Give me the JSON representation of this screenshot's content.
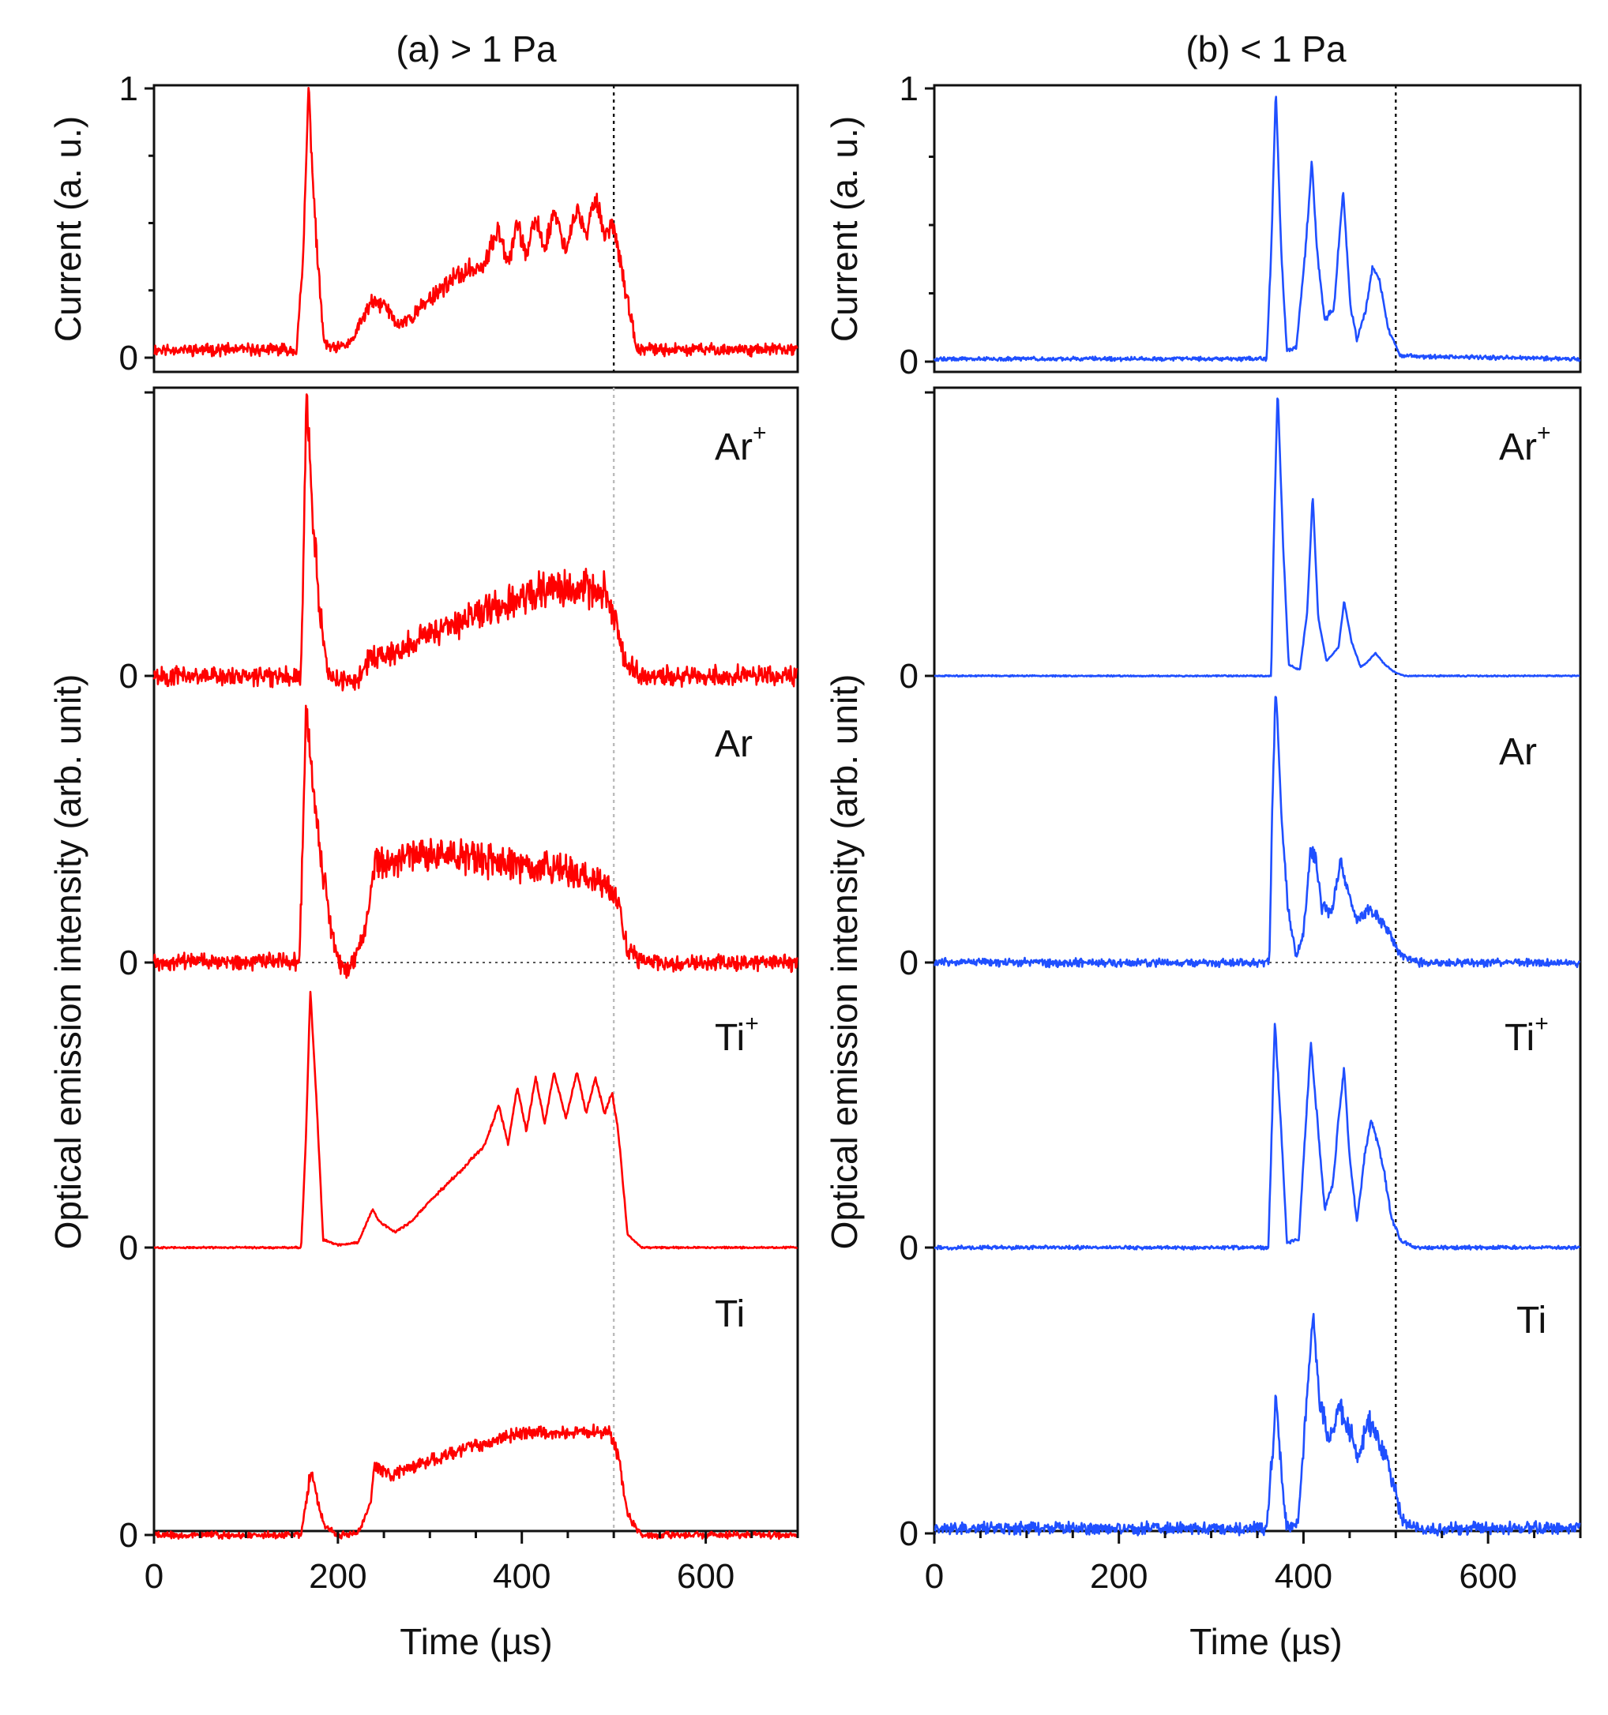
{
  "chart_data": [
    {
      "id": "a",
      "type": "line",
      "title": "(a) > 1 Pa",
      "xlabel": "Time (µs)",
      "xlim": [
        0,
        700
      ],
      "xticks": [
        "0",
        "200",
        "400",
        "600"
      ],
      "xtick_values": [
        0,
        200,
        400,
        600
      ],
      "pulse_end_us": 500,
      "color": "#ff0000",
      "current": {
        "ylabel": "Current (a. u.)",
        "ylim": [
          0,
          1
        ],
        "yticks": [
          "0",
          "1"
        ],
        "noise": 0.035,
        "points": [
          [
            0,
            0.03
          ],
          [
            155,
            0.03
          ],
          [
            162,
            0.35
          ],
          [
            168,
            1.0
          ],
          [
            176,
            0.45
          ],
          [
            185,
            0.05
          ],
          [
            198,
            0.03
          ],
          [
            215,
            0.06
          ],
          [
            235,
            0.2
          ],
          [
            250,
            0.2
          ],
          [
            265,
            0.12
          ],
          [
            280,
            0.15
          ],
          [
            300,
            0.22
          ],
          [
            320,
            0.28
          ],
          [
            340,
            0.32
          ],
          [
            360,
            0.35
          ],
          [
            375,
            0.48
          ],
          [
            385,
            0.36
          ],
          [
            395,
            0.5
          ],
          [
            405,
            0.38
          ],
          [
            415,
            0.52
          ],
          [
            425,
            0.4
          ],
          [
            435,
            0.55
          ],
          [
            448,
            0.4
          ],
          [
            460,
            0.55
          ],
          [
            470,
            0.45
          ],
          [
            480,
            0.6
          ],
          [
            490,
            0.46
          ],
          [
            500,
            0.5
          ],
          [
            510,
            0.3
          ],
          [
            525,
            0.03
          ],
          [
            700,
            0.03
          ]
        ]
      },
      "emission": {
        "ylabel": "Optical emission intensity (arb. unit)",
        "yticks": [
          "0",
          "0",
          "0",
          "0"
        ],
        "series": [
          {
            "name": "Ar",
            "sup": "+",
            "noise": 0.06,
            "points": [
              [
                0,
                0
              ],
              [
                160,
                0
              ],
              [
                163,
                0.5
              ],
              [
                166,
                1.0
              ],
              [
                172,
                0.6
              ],
              [
                180,
                0.25
              ],
              [
                190,
                0.0
              ],
              [
                200,
                -0.02
              ],
              [
                220,
                -0.02
              ],
              [
                235,
                0.06
              ],
              [
                260,
                0.08
              ],
              [
                300,
                0.15
              ],
              [
                340,
                0.2
              ],
              [
                380,
                0.26
              ],
              [
                420,
                0.3
              ],
              [
                460,
                0.32
              ],
              [
                490,
                0.3
              ],
              [
                500,
                0.22
              ],
              [
                512,
                0.05
              ],
              [
                530,
                0
              ],
              [
                700,
                0
              ]
            ]
          },
          {
            "name": "Ar",
            "sup": "",
            "noise": 0.055,
            "zero_line": true,
            "points": [
              [
                0,
                0
              ],
              [
                158,
                0
              ],
              [
                162,
                0.45
              ],
              [
                165,
                0.95
              ],
              [
                172,
                0.7
              ],
              [
                182,
                0.38
              ],
              [
                195,
                0.08
              ],
              [
                205,
                -0.03
              ],
              [
                218,
                0
              ],
              [
                232,
                0.15
              ],
              [
                240,
                0.38
              ],
              [
                260,
                0.38
              ],
              [
                300,
                0.4
              ],
              [
                350,
                0.39
              ],
              [
                400,
                0.36
              ],
              [
                450,
                0.34
              ],
              [
                495,
                0.3
              ],
              [
                505,
                0.24
              ],
              [
                515,
                0.05
              ],
              [
                530,
                0
              ],
              [
                700,
                0
              ]
            ]
          },
          {
            "name": "Ti",
            "sup": "+",
            "noise": 0.006,
            "points": [
              [
                0,
                0
              ],
              [
                160,
                0
              ],
              [
                165,
                0.4
              ],
              [
                170,
                1.0
              ],
              [
                177,
                0.55
              ],
              [
                184,
                0.03
              ],
              [
                200,
                0.01
              ],
              [
                222,
                0.02
              ],
              [
                238,
                0.15
              ],
              [
                245,
                0.1
              ],
              [
                262,
                0.06
              ],
              [
                280,
                0.1
              ],
              [
                300,
                0.18
              ],
              [
                320,
                0.25
              ],
              [
                340,
                0.32
              ],
              [
                360,
                0.4
              ],
              [
                375,
                0.55
              ],
              [
                385,
                0.4
              ],
              [
                395,
                0.62
              ],
              [
                405,
                0.45
              ],
              [
                415,
                0.66
              ],
              [
                425,
                0.48
              ],
              [
                435,
                0.68
              ],
              [
                448,
                0.5
              ],
              [
                460,
                0.68
              ],
              [
                470,
                0.52
              ],
              [
                480,
                0.66
              ],
              [
                490,
                0.52
              ],
              [
                498,
                0.6
              ],
              [
                505,
                0.45
              ],
              [
                515,
                0.05
              ],
              [
                530,
                0
              ],
              [
                700,
                0
              ]
            ]
          },
          {
            "name": "Ti",
            "sup": "",
            "noise": 0.03,
            "points": [
              [
                0,
                0
              ],
              [
                160,
                0
              ],
              [
                165,
                0.15
              ],
              [
                170,
                0.32
              ],
              [
                176,
                0.22
              ],
              [
                185,
                0.05
              ],
              [
                200,
                0.0
              ],
              [
                222,
                0.01
              ],
              [
                235,
                0.15
              ],
              [
                240,
                0.35
              ],
              [
                260,
                0.3
              ],
              [
                300,
                0.38
              ],
              [
                350,
                0.45
              ],
              [
                400,
                0.52
              ],
              [
                450,
                0.52
              ],
              [
                495,
                0.52
              ],
              [
                505,
                0.4
              ],
              [
                515,
                0.1
              ],
              [
                530,
                0
              ],
              [
                700,
                0
              ]
            ]
          }
        ]
      }
    },
    {
      "id": "b",
      "type": "line",
      "title": "(b) < 1 Pa",
      "xlabel": "Time (µs)",
      "xlim": [
        0,
        700
      ],
      "xticks": [
        "0",
        "200",
        "400",
        "600"
      ],
      "xtick_values": [
        0,
        200,
        400,
        600
      ],
      "pulse_end_us": 500,
      "color": "#1f4fff",
      "current": {
        "ylabel": "Current (a. u.)",
        "ylim": [
          0,
          1
        ],
        "yticks": [
          "0",
          "1"
        ],
        "noise": 0.012,
        "points": [
          [
            0,
            0.01
          ],
          [
            360,
            0.01
          ],
          [
            365,
            0.4
          ],
          [
            370,
            1.0
          ],
          [
            376,
            0.4
          ],
          [
            382,
            0.04
          ],
          [
            392,
            0.05
          ],
          [
            402,
            0.4
          ],
          [
            409,
            0.73
          ],
          [
            415,
            0.4
          ],
          [
            423,
            0.15
          ],
          [
            433,
            0.2
          ],
          [
            443,
            0.63
          ],
          [
            451,
            0.2
          ],
          [
            458,
            0.08
          ],
          [
            468,
            0.2
          ],
          [
            475,
            0.35
          ],
          [
            482,
            0.3
          ],
          [
            492,
            0.12
          ],
          [
            505,
            0.02
          ],
          [
            700,
            0.01
          ]
        ]
      },
      "emission": {
        "ylabel": "Optical emission intensity (arb. unit)",
        "yticks": [
          "0",
          "0",
          "0",
          "0"
        ],
        "series": [
          {
            "name": "Ar",
            "sup": "+",
            "noise": 0.004,
            "points": [
              [
                0,
                0
              ],
              [
                365,
                0
              ],
              [
                368,
                0.5
              ],
              [
                372,
                1.0
              ],
              [
                378,
                0.45
              ],
              [
                384,
                0.04
              ],
              [
                396,
                0.02
              ],
              [
                404,
                0.22
              ],
              [
                410,
                0.63
              ],
              [
                416,
                0.2
              ],
              [
                425,
                0.05
              ],
              [
                438,
                0.1
              ],
              [
                444,
                0.26
              ],
              [
                452,
                0.12
              ],
              [
                462,
                0.03
              ],
              [
                470,
                0.05
              ],
              [
                478,
                0.08
              ],
              [
                488,
                0.04
              ],
              [
                500,
                0.01
              ],
              [
                510,
                0
              ],
              [
                700,
                0
              ]
            ]
          },
          {
            "name": "Ar",
            "sup": "",
            "noise": 0.025,
            "zero_line": true,
            "points": [
              [
                0,
                0
              ],
              [
                363,
                0
              ],
              [
                366,
                0.55
              ],
              [
                370,
                1.0
              ],
              [
                376,
                0.55
              ],
              [
                383,
                0.2
              ],
              [
                392,
                0.02
              ],
              [
                400,
                0.1
              ],
              [
                407,
                0.4
              ],
              [
                413,
                0.38
              ],
              [
                420,
                0.2
              ],
              [
                430,
                0.18
              ],
              [
                440,
                0.36
              ],
              [
                448,
                0.26
              ],
              [
                458,
                0.15
              ],
              [
                470,
                0.2
              ],
              [
                482,
                0.16
              ],
              [
                495,
                0.1
              ],
              [
                505,
                0.03
              ],
              [
                520,
                0
              ],
              [
                700,
                0
              ]
            ]
          },
          {
            "name": "Ti",
            "sup": "+",
            "noise": 0.012,
            "points": [
              [
                0,
                0
              ],
              [
                362,
                0
              ],
              [
                366,
                0.5
              ],
              [
                369,
                0.88
              ],
              [
                376,
                0.45
              ],
              [
                382,
                0.02
              ],
              [
                395,
                0.03
              ],
              [
                402,
                0.45
              ],
              [
                408,
                0.8
              ],
              [
                415,
                0.5
              ],
              [
                423,
                0.15
              ],
              [
                432,
                0.25
              ],
              [
                438,
                0.5
              ],
              [
                444,
                0.7
              ],
              [
                450,
                0.35
              ],
              [
                458,
                0.1
              ],
              [
                466,
                0.35
              ],
              [
                473,
                0.5
              ],
              [
                480,
                0.42
              ],
              [
                488,
                0.28
              ],
              [
                495,
                0.12
              ],
              [
                505,
                0.03
              ],
              [
                520,
                0
              ],
              [
                700,
                0
              ]
            ]
          },
          {
            "name": "Ti",
            "sup": "",
            "noise": 0.04,
            "points": [
              [
                0,
                0.02
              ],
              [
                360,
                0.02
              ],
              [
                366,
                0.3
              ],
              [
                370,
                0.55
              ],
              [
                376,
                0.25
              ],
              [
                382,
                0.02
              ],
              [
                394,
                0.04
              ],
              [
                402,
                0.45
              ],
              [
                410,
                0.88
              ],
              [
                418,
                0.5
              ],
              [
                428,
                0.38
              ],
              [
                440,
                0.5
              ],
              [
                450,
                0.4
              ],
              [
                460,
                0.3
              ],
              [
                470,
                0.45
              ],
              [
                480,
                0.38
              ],
              [
                490,
                0.3
              ],
              [
                498,
                0.18
              ],
              [
                508,
                0.05
              ],
              [
                520,
                0.02
              ],
              [
                700,
                0.02
              ]
            ]
          }
        ]
      }
    }
  ]
}
